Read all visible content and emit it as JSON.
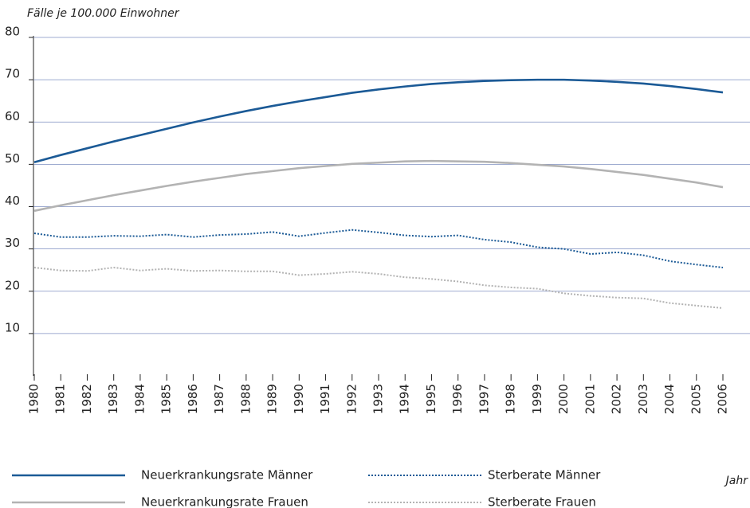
{
  "chart_data": {
    "type": "line",
    "y_label": "Fälle je 100.000 Einwohner",
    "x_label": "Jahr",
    "categories": [
      "1980",
      "1981",
      "1982",
      "1983",
      "1984",
      "1985",
      "1986",
      "1987",
      "1988",
      "1989",
      "1990",
      "1991",
      "1992",
      "1993",
      "1994",
      "1995",
      "1996",
      "1997",
      "1998",
      "1999",
      "2000",
      "2001",
      "2002",
      "2003",
      "2004",
      "2005",
      "2006"
    ],
    "ylim": [
      0,
      80
    ],
    "yticks": [
      10,
      20,
      30,
      40,
      50,
      60,
      70,
      80
    ],
    "grid": true,
    "legend": "bottom",
    "series": [
      {
        "name": "Neuerkrankungsrate Männer",
        "color": "#1b5a96",
        "style": "solid",
        "values": [
          50.5,
          52.2,
          53.8,
          55.4,
          56.9,
          58.4,
          59.9,
          61.3,
          62.6,
          63.8,
          64.9,
          65.9,
          66.9,
          67.7,
          68.4,
          69.0,
          69.4,
          69.7,
          69.9,
          70.0,
          70.0,
          69.8,
          69.5,
          69.1,
          68.5,
          67.8,
          67.0
        ]
      },
      {
        "name": "Sterberate Männer",
        "color": "#1b5a96",
        "style": "dotted",
        "values": [
          33.7,
          32.8,
          32.8,
          33.1,
          33.0,
          33.4,
          32.8,
          33.3,
          33.5,
          34.0,
          33.0,
          33.8,
          34.5,
          33.9,
          33.2,
          32.9,
          33.2,
          32.2,
          31.6,
          30.4,
          30.0,
          28.8,
          29.2,
          28.5,
          27.1,
          26.3,
          25.6
        ]
      },
      {
        "name": "Neuerkrankungsrate Frauen",
        "color": "#b3b3b3",
        "style": "solid",
        "values": [
          39.0,
          40.3,
          41.5,
          42.7,
          43.8,
          44.9,
          45.9,
          46.8,
          47.7,
          48.4,
          49.1,
          49.6,
          50.1,
          50.4,
          50.7,
          50.8,
          50.7,
          50.6,
          50.3,
          49.9,
          49.5,
          48.9,
          48.2,
          47.5,
          46.6,
          45.7,
          44.6
        ]
      },
      {
        "name": "Sterberate Frauen",
        "color": "#b3b3b3",
        "style": "dotted",
        "values": [
          25.6,
          24.9,
          24.8,
          25.6,
          24.9,
          25.3,
          24.8,
          24.9,
          24.7,
          24.7,
          23.8,
          24.1,
          24.6,
          24.1,
          23.3,
          22.9,
          22.3,
          21.4,
          20.9,
          20.6,
          19.5,
          18.9,
          18.5,
          18.3,
          17.2,
          16.6,
          16.0
        ]
      }
    ]
  }
}
